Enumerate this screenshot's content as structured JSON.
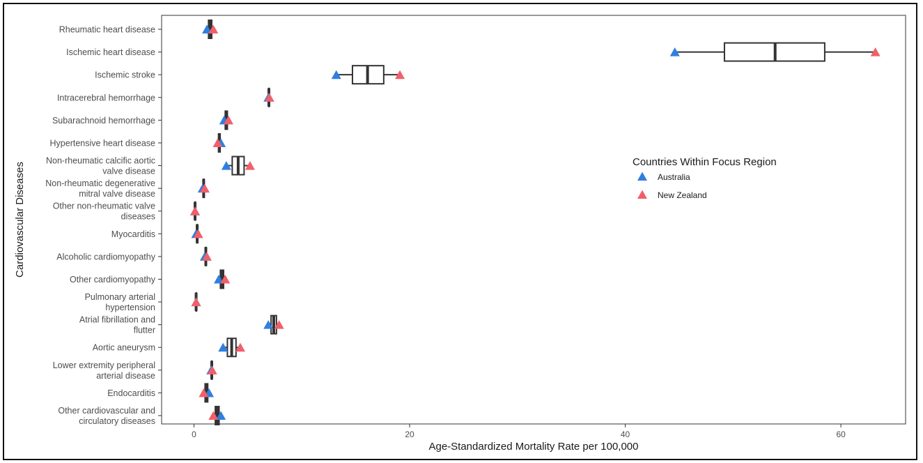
{
  "chart_data": {
    "type": "boxplot",
    "title": "",
    "xlabel": "Age-Standardized Mortality Rate per 100,000",
    "ylabel": "Cardiovascular Diseases",
    "xlim": [
      -3,
      66
    ],
    "xticks": [
      0,
      20,
      40,
      60
    ],
    "grid": false,
    "legend": {
      "title": "Countries Within Focus Region",
      "placement": "right",
      "entries": [
        {
          "name": "Australia",
          "color": "#2f7fe0"
        },
        {
          "name": "New Zealand",
          "color": "#f0606a"
        }
      ]
    },
    "categories": [
      [
        "Rheumatic heart disease"
      ],
      [
        "Ischemic heart disease"
      ],
      [
        "Ischemic stroke"
      ],
      [
        "Intracerebral hemorrhage"
      ],
      [
        "Subarachnoid hemorrhage"
      ],
      [
        "Hypertensive heart disease"
      ],
      [
        "Non-rheumatic calcific aortic",
        "valve disease"
      ],
      [
        "Non-rheumatic degenerative",
        "mitral valve disease"
      ],
      [
        "Other non-rheumatic valve",
        "diseases"
      ],
      [
        "Myocarditis"
      ],
      [
        "Alcoholic cardiomyopathy"
      ],
      [
        "Other cardiomyopathy"
      ],
      [
        "Pulmonary arterial",
        "hypertension"
      ],
      [
        "Atrial fibrillation and",
        "flutter"
      ],
      [
        "Aortic aneurysm"
      ],
      [
        "Lower extremity peripheral",
        "arterial disease"
      ],
      [
        "Endocarditis"
      ],
      [
        "Other cardiovascular and",
        "circulatory diseases"
      ]
    ],
    "series": [
      {
        "name": "Australia",
        "values": [
          1.2,
          44.6,
          13.2,
          6.9,
          2.8,
          2.5,
          3.0,
          0.8,
          0.1,
          0.2,
          1.0,
          2.3,
          0.2,
          6.9,
          2.7,
          1.6,
          1.4,
          2.5
        ]
      },
      {
        "name": "New Zealand",
        "values": [
          1.8,
          63.2,
          19.1,
          7.0,
          3.2,
          2.2,
          5.2,
          1.0,
          0.1,
          0.4,
          1.2,
          2.9,
          0.2,
          7.9,
          4.3,
          1.7,
          0.9,
          1.8
        ]
      }
    ],
    "boxes": [
      {
        "min": 1.2,
        "q1": 1.35,
        "median": 1.5,
        "q3": 1.65,
        "max": 1.8
      },
      {
        "min": 44.6,
        "q1": 49.2,
        "median": 53.9,
        "q3": 58.5,
        "max": 63.2
      },
      {
        "min": 13.2,
        "q1": 14.7,
        "median": 16.1,
        "q3": 17.6,
        "max": 19.1
      },
      {
        "min": 6.9,
        "q1": 6.93,
        "median": 6.95,
        "q3": 6.98,
        "max": 7.0
      },
      {
        "min": 2.8,
        "q1": 2.9,
        "median": 3.0,
        "q3": 3.1,
        "max": 3.2
      },
      {
        "min": 2.2,
        "q1": 2.28,
        "median": 2.35,
        "q3": 2.43,
        "max": 2.5
      },
      {
        "min": 3.0,
        "q1": 3.55,
        "median": 4.1,
        "q3": 4.65,
        "max": 5.2
      },
      {
        "min": 0.8,
        "q1": 0.85,
        "median": 0.9,
        "q3": 0.95,
        "max": 1.0
      },
      {
        "min": 0.1,
        "q1": 0.1,
        "median": 0.1,
        "q3": 0.1,
        "max": 0.1
      },
      {
        "min": 0.2,
        "q1": 0.25,
        "median": 0.3,
        "q3": 0.35,
        "max": 0.4
      },
      {
        "min": 1.0,
        "q1": 1.05,
        "median": 1.1,
        "q3": 1.15,
        "max": 1.2
      },
      {
        "min": 2.3,
        "q1": 2.45,
        "median": 2.6,
        "q3": 2.75,
        "max": 2.9
      },
      {
        "min": 0.2,
        "q1": 0.2,
        "median": 0.2,
        "q3": 0.2,
        "max": 0.2
      },
      {
        "min": 6.9,
        "q1": 7.15,
        "median": 7.4,
        "q3": 7.65,
        "max": 7.9
      },
      {
        "min": 2.7,
        "q1": 3.1,
        "median": 3.5,
        "q3": 3.9,
        "max": 4.3
      },
      {
        "min": 1.6,
        "q1": 1.63,
        "median": 1.65,
        "q3": 1.68,
        "max": 1.7
      },
      {
        "min": 0.9,
        "q1": 1.03,
        "median": 1.15,
        "q3": 1.28,
        "max": 1.4
      },
      {
        "min": 1.8,
        "q1": 1.98,
        "median": 2.15,
        "q3": 2.33,
        "max": 2.5
      }
    ]
  }
}
